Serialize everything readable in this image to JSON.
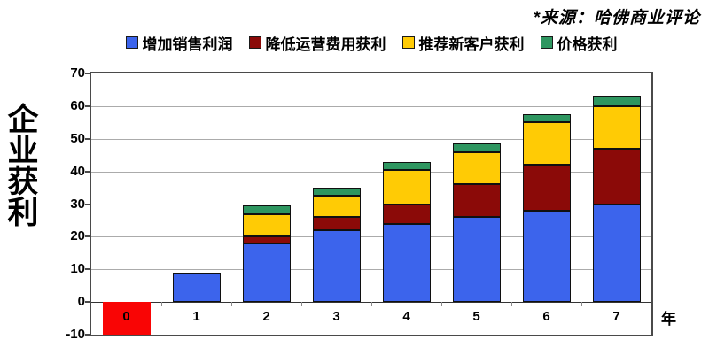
{
  "source_note": "*来源：哈佛商业评论",
  "y_axis_title": "企业获利",
  "x_axis_unit": "年",
  "colors": {
    "blue": "#3C64EC",
    "darkred": "#8B0A08",
    "yellow": "#FFCB05",
    "green": "#2E9660",
    "red": "#F90505",
    "gridline": "#ABABAB",
    "zero_line": "#333333",
    "frame": "#4A4A4A"
  },
  "chart_data": {
    "type": "bar",
    "stacked": true,
    "title": "",
    "xlabel": "年",
    "ylabel": "企业获利",
    "categories": [
      "0",
      "1",
      "2",
      "3",
      "4",
      "5",
      "6",
      "7"
    ],
    "series": [
      {
        "name": "增加销售利润",
        "color": "#3C64EC",
        "values": [
          0,
          9,
          18,
          22,
          24,
          26,
          28,
          30
        ]
      },
      {
        "name": "降低运营费用获利",
        "color": "#8B0A08",
        "values": [
          0,
          0,
          2,
          4,
          6,
          10,
          14,
          17
        ]
      },
      {
        "name": "推荐新客户获利",
        "color": "#FFCB05",
        "values": [
          0,
          0,
          7,
          6.5,
          10.5,
          10,
          13,
          13
        ]
      },
      {
        "name": "价格获利",
        "color": "#2E9660",
        "values": [
          0,
          0,
          2.5,
          2.5,
          2.5,
          2.5,
          2.5,
          3
        ]
      }
    ],
    "negative_bar": {
      "category": "0",
      "value": -10,
      "color": "#F90505"
    },
    "ylim": [
      -10,
      70
    ],
    "ytick_step": 10,
    "grid": true,
    "legend_position": "top"
  }
}
